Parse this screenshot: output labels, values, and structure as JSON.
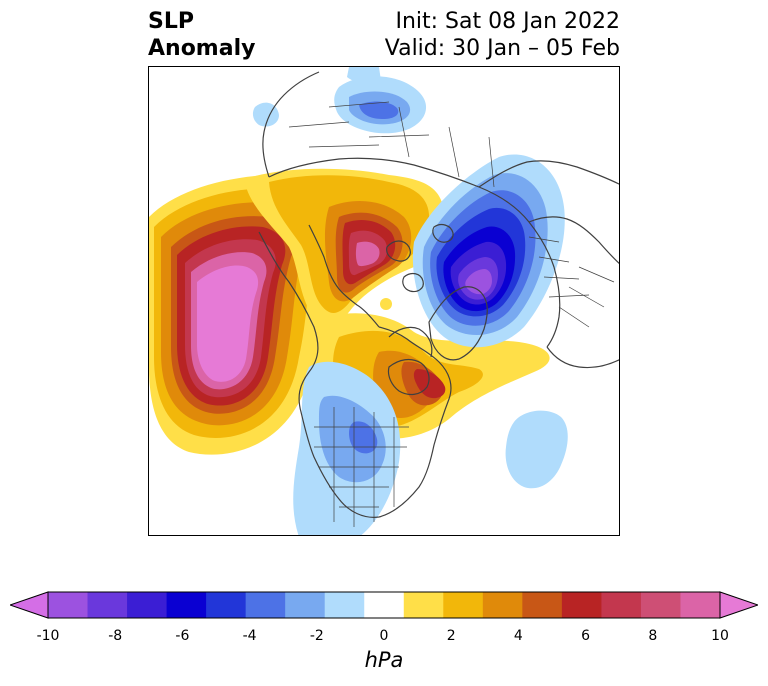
{
  "title": {
    "left_line1": "SLP",
    "left_line2": "Anomaly",
    "right_line1": "Init: Sat 08 Jan 2022",
    "right_line2": "Valid: 30 Jan – 05 Feb"
  },
  "colorbar": {
    "unit": "hPa",
    "tick_labels": [
      "-10",
      "-8",
      "-6",
      "-4",
      "-2",
      "0",
      "2",
      "4",
      "6",
      "8",
      "10"
    ],
    "min": -10,
    "max": 10,
    "extend": "both",
    "colors": [
      "#d46ee6",
      "#9c52e0",
      "#6a38dc",
      "#3b1ed4",
      "#0a00d2",
      "#2236d8",
      "#4d72e6",
      "#78a9f0",
      "#b0dcfc",
      "#ffffff",
      "#ffdf48",
      "#f2b70a",
      "#e08a0a",
      "#c85716",
      "#b82424",
      "#c3374e",
      "#ce4f75",
      "#db64a7",
      "#e67ad6"
    ]
  },
  "map": {
    "projection": "polar-stereographic",
    "region": "Northern Hemisphere",
    "features": [
      {
        "type": "positive anomaly center",
        "location": "Northeast Pacific / Gulf of Alaska",
        "peak_hPa": ">10"
      },
      {
        "type": "positive anomaly center",
        "location": "Siberia / Arctic coast",
        "peak_hPa": "8"
      },
      {
        "type": "positive anomaly center",
        "location": "Eastern Canada / Hudson Bay",
        "peak_hPa": "6"
      },
      {
        "type": "negative anomaly center",
        "location": "Scandinavia / Barents Sea",
        "peak_hPa": "-10"
      },
      {
        "type": "negative anomaly",
        "location": "Central United States",
        "peak_hPa": "-2"
      },
      {
        "type": "negative anomaly",
        "location": "Central Asia",
        "peak_hPa": "-4"
      },
      {
        "type": "negative anomaly",
        "location": "North Atlantic",
        "peak_hPa": "-2"
      }
    ]
  }
}
